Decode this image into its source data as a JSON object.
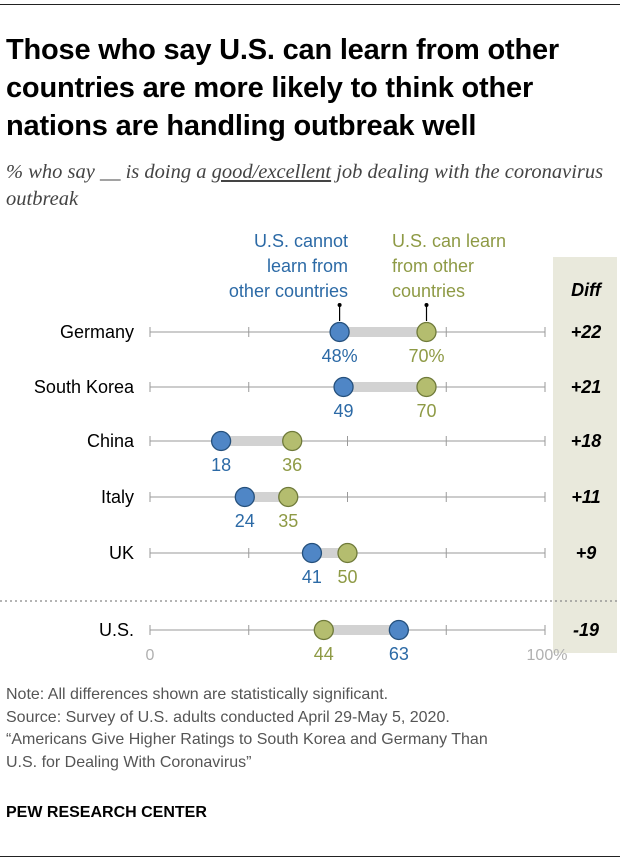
{
  "header": {
    "title": "Those who say U.S. can learn from other countries are more likely to think other nations are handling outbreak well",
    "subtitle_pre": "% who say __ is doing a ",
    "subtitle_underlined": "good/excellent",
    "subtitle_post": " job dealing with the coronavirus outbreak"
  },
  "chart_data": {
    "type": "dot-range",
    "series": [
      {
        "name": "U.S. cannot learn from other countries",
        "color": "#4f86c6"
      },
      {
        "name": "U.S. can learn from other countries",
        "color": "#b4bd6f"
      }
    ],
    "legend_lines": [
      [
        "U.S. cannot",
        "learn from",
        "other countries"
      ],
      [
        "U.S. can learn",
        "from other",
        "countries"
      ]
    ],
    "label_colors": {
      "cannot": "#2c6aa6",
      "can": "#8e9a45"
    },
    "diff_header": "Diff",
    "rows": [
      {
        "country": "Germany",
        "cannot": 48,
        "can": 70,
        "cannot_label": "48%",
        "can_label": "70%",
        "diff": "+22"
      },
      {
        "country": "South Korea",
        "cannot": 49,
        "can": 70,
        "cannot_label": "49",
        "can_label": "70",
        "diff": "+21"
      },
      {
        "country": "China",
        "cannot": 18,
        "can": 36,
        "cannot_label": "18",
        "can_label": "36",
        "diff": "+18"
      },
      {
        "country": "Italy",
        "cannot": 24,
        "can": 35,
        "cannot_label": "24",
        "can_label": "35",
        "diff": "+11"
      },
      {
        "country": "UK",
        "cannot": 41,
        "can": 50,
        "cannot_label": "41",
        "can_label": "50",
        "diff": "+9"
      },
      {
        "country": "U.S.",
        "cannot": 63,
        "can": 44,
        "cannot_label": "63",
        "can_label": "44",
        "diff": "-19"
      }
    ],
    "xlim": [
      0,
      100
    ],
    "axis_labels": [
      "0",
      "100%"
    ],
    "colors": {
      "range_bar": "#d2d2d2",
      "axis_line": "#9a9a9a",
      "diff_panel": "#e9e9dc"
    }
  },
  "footer": {
    "note": "Note: All differences shown are statistically significant.",
    "source": "Source: Survey of U.S. adults conducted April 29-May 5, 2020.",
    "report_line1": "“Americans Give Higher Ratings to South Korea and Germany Than",
    "report_line2": "U.S. for Dealing With Coronavirus”",
    "brand": "PEW RESEARCH CENTER"
  }
}
